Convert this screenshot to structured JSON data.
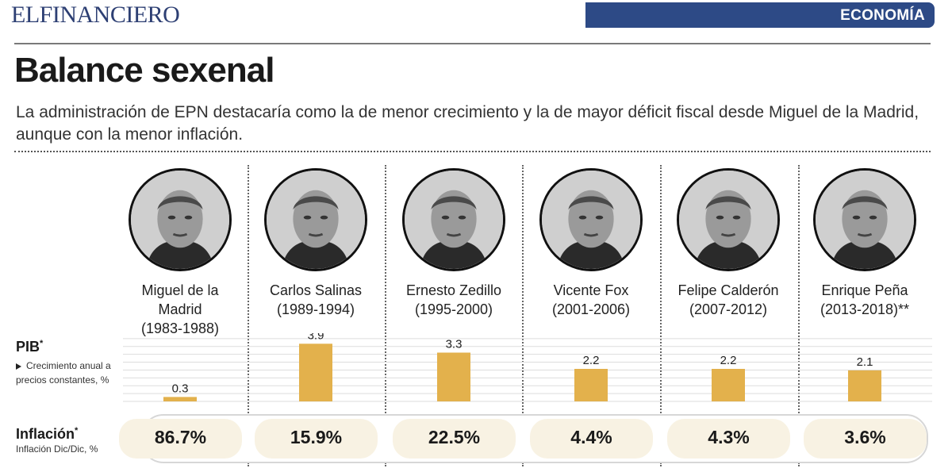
{
  "header": {
    "brand": "ELFINANCIERO",
    "section": "ECONOMÍA",
    "title": "Balance sexenal",
    "subtitle": "La administración de EPN destacaría como la de menor crecimiento y la de mayor déficit fiscal desde Miguel de la Madrid, aunque con la menor inflación."
  },
  "presidents": [
    {
      "name_lines": [
        "Miguel de la",
        "Madrid",
        "(1983-1988)"
      ]
    },
    {
      "name_lines": [
        "Carlos Salinas",
        "(1989-1994)"
      ]
    },
    {
      "name_lines": [
        "Ernesto Zedillo",
        "(1995-2000)"
      ]
    },
    {
      "name_lines": [
        "Vicente Fox",
        "(2001-2006)"
      ]
    },
    {
      "name_lines": [
        "Felipe Calderón",
        "(2007-2012)"
      ]
    },
    {
      "name_lines": [
        "Enrique Peña",
        "(2013-2018)**"
      ]
    }
  ],
  "pib": {
    "label": "PIB",
    "marker": "*",
    "description": "Crecimiento anual a precios constantes, %"
  },
  "inflation": {
    "label": "Inflación",
    "marker": "*",
    "description": "Inflación Dic/Dic, %",
    "values": [
      "86.7%",
      "15.9%",
      "22.5%",
      "4.4%",
      "4.3%",
      "3.6%"
    ]
  },
  "chart_data": {
    "type": "bar",
    "categories": [
      "Miguel de la Madrid (1983-1988)",
      "Carlos Salinas (1989-1994)",
      "Ernesto Zedillo (1995-2000)",
      "Vicente Fox (2001-2006)",
      "Felipe Calderón (2007-2012)",
      "Enrique Peña (2013-2018)**"
    ],
    "values": [
      0.3,
      3.9,
      3.3,
      2.2,
      2.2,
      2.1
    ],
    "value_labels": [
      "0.3",
      "3.9",
      "3.3",
      "2.2",
      "2.2",
      "2.1"
    ],
    "ylim": [
      0,
      4.4
    ],
    "grid": true,
    "bar_color": "#e3b14c"
  },
  "colors": {
    "brand": "#2d3f73",
    "section_tab": "#2d4a86",
    "bar": "#e3b14c",
    "inflation_cell": "#f8f2e3"
  }
}
